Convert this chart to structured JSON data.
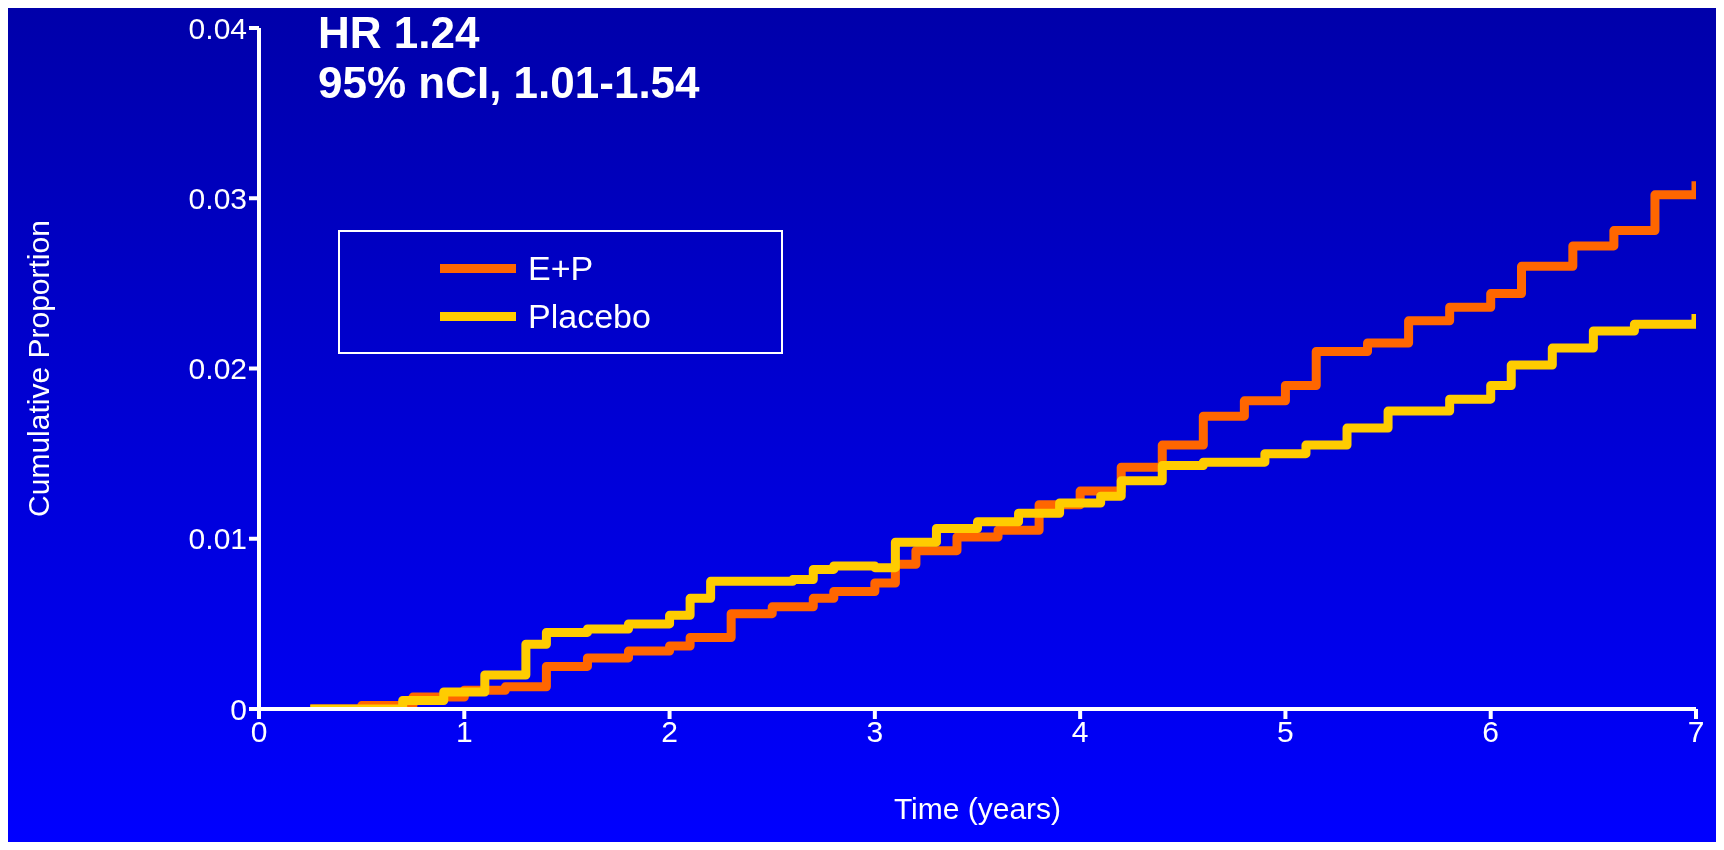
{
  "chart_data": {
    "type": "step",
    "xlabel": "Time (years)",
    "ylabel": "Cumulative Proportion",
    "annotations": [
      "HR 1.24",
      "95% nCI, 1.01-1.54"
    ],
    "xlim": [
      0,
      7
    ],
    "xticks": [
      0,
      1,
      2,
      3,
      4,
      5,
      6,
      7
    ],
    "ylim": [
      0,
      0.04
    ],
    "yticks": [
      0,
      0.01,
      0.02,
      0.03,
      0.04
    ],
    "grid": false,
    "legend": "top left",
    "marker": "none",
    "line_style": "solid",
    "series": [
      {
        "name": "E+P",
        "color": "#ff6600",
        "x": [
          0.25,
          0.5,
          0.75,
          1.0,
          1.2,
          1.4,
          1.6,
          1.8,
          2.0,
          2.1,
          2.3,
          2.5,
          2.7,
          2.8,
          3.0,
          3.1,
          3.2,
          3.4,
          3.6,
          3.8,
          4.0,
          4.2,
          4.4,
          4.6,
          4.8,
          5.0,
          5.15,
          5.4,
          5.6,
          5.8,
          6.0,
          6.15,
          6.4,
          6.6,
          6.8,
          7.0
        ],
        "values": [
          0,
          0.0002,
          0.0007,
          0.0011,
          0.0013,
          0.0025,
          0.003,
          0.0034,
          0.0037,
          0.0042,
          0.0056,
          0.006,
          0.0065,
          0.0069,
          0.0074,
          0.0085,
          0.0093,
          0.0101,
          0.0105,
          0.012,
          0.0128,
          0.0142,
          0.0155,
          0.0172,
          0.0181,
          0.019,
          0.021,
          0.0215,
          0.0228,
          0.0236,
          0.0244,
          0.026,
          0.0272,
          0.0281,
          0.0302,
          0.031
        ]
      },
      {
        "name": "Placebo",
        "color": "#ffcc00",
        "x": [
          0.25,
          0.45,
          0.7,
          0.9,
          1.1,
          1.3,
          1.4,
          1.6,
          1.8,
          2.0,
          2.1,
          2.2,
          2.6,
          2.7,
          2.8,
          3.0,
          3.1,
          3.3,
          3.5,
          3.7,
          3.9,
          4.1,
          4.2,
          4.4,
          4.6,
          4.9,
          5.1,
          5.3,
          5.5,
          5.8,
          6.0,
          6.1,
          6.3,
          6.5,
          6.7,
          7.0
        ],
        "values": [
          0,
          0,
          0.0005,
          0.001,
          0.002,
          0.0038,
          0.0045,
          0.0047,
          0.005,
          0.0055,
          0.0065,
          0.0075,
          0.0076,
          0.0082,
          0.0084,
          0.0083,
          0.0098,
          0.0106,
          0.011,
          0.0115,
          0.0121,
          0.0125,
          0.0134,
          0.0143,
          0.0145,
          0.015,
          0.0155,
          0.0165,
          0.0175,
          0.0182,
          0.019,
          0.0202,
          0.0212,
          0.0222,
          0.0226,
          0.0232
        ]
      }
    ]
  }
}
